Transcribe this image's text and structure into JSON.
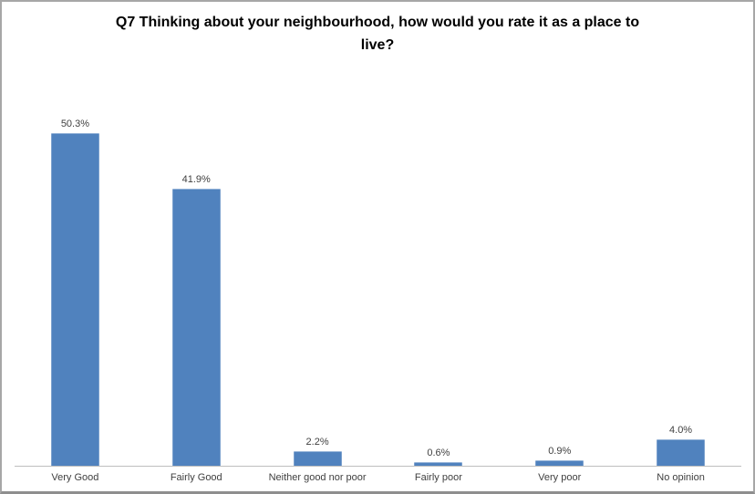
{
  "title": {
    "full": "Q7 Thinking about your neighbourhood, how would you rate it as a place to live?",
    "line1": "Q7 Thinking about your neighbourhood, how would you rate it as a place to",
    "line2": "live?"
  },
  "chart_data": {
    "type": "bar",
    "title": "Q7 Thinking about your neighbourhood, how would you rate it as a place to live?",
    "categories": [
      "Very Good",
      "Fairly Good",
      "Neither good nor poor",
      "Fairly poor",
      "Very poor",
      "No opinion"
    ],
    "values": [
      50.3,
      41.9,
      2.2,
      0.6,
      0.9,
      4.0
    ],
    "value_labels": [
      "50.3%",
      "41.9%",
      "2.2%",
      "0.6%",
      "0.9%",
      "4.0%"
    ],
    "xlabel": "",
    "ylabel": "",
    "ylim": [
      0,
      60
    ],
    "grid": false,
    "legend": false,
    "bar_color": "#5082be",
    "axis_line_color": "#bfbfbf",
    "label_color": "#404040",
    "frame_border_color": "#a7a7a7"
  }
}
